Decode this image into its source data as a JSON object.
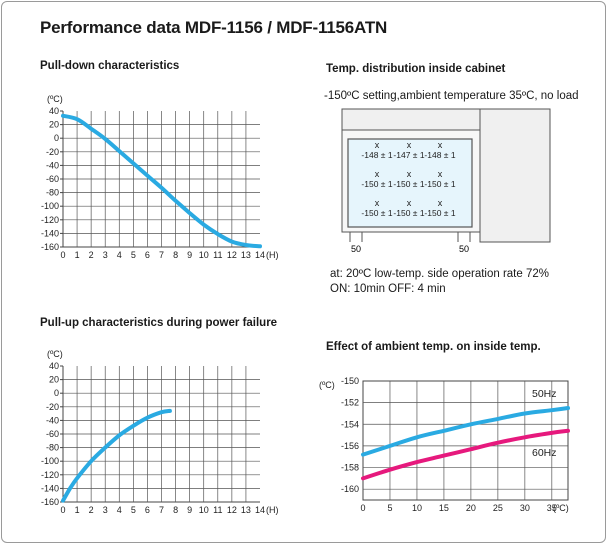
{
  "page": {
    "title": "Performance data MDF-1156 / MDF-1156ATN"
  },
  "pulldown": {
    "heading": "Pull-down characteristics"
  },
  "pullup": {
    "heading": "Pull-up characteristics during power failure"
  },
  "distribution": {
    "heading": "Temp. distribution inside cabinet",
    "setting": "-150ºC setting,ambient temperature 35ºC, no load",
    "readings": [
      [
        "-148 ± 1",
        "-147 ± 1",
        "-148 ± 1"
      ],
      [
        "-150 ± 1",
        "-150 ± 1",
        "-150 ± 1"
      ],
      [
        "-150 ± 1",
        "-150 ± 1",
        "-150 ± 1"
      ]
    ],
    "marker": "x",
    "leg_label_left": "50",
    "leg_label_right": "50",
    "operation_line1": "at: 20ºC low-temp. side operation rate 72%",
    "operation_line2": "ON: 10min  OFF: 4 min"
  },
  "ambient": {
    "heading": "Effect of ambient temp. on inside temp."
  },
  "chart_data": [
    {
      "type": "line",
      "title": "Pull-down characteristics",
      "xlabel": "(H)",
      "ylabel": "(ºC)",
      "xlim": [
        0,
        14
      ],
      "ylim": [
        -160,
        40
      ],
      "xticks": [
        0,
        1,
        2,
        3,
        4,
        5,
        6,
        7,
        8,
        9,
        10,
        11,
        12,
        13,
        14
      ],
      "yticks": [
        40,
        20,
        0,
        -20,
        -40,
        -60,
        -80,
        -100,
        -120,
        -140,
        -160
      ],
      "x_tick_labels": [
        "0",
        "1",
        "2",
        "3",
        "4",
        "5",
        "6",
        "7",
        "8",
        "9",
        "10",
        "11",
        "12",
        "13",
        "14"
      ],
      "y_tick_labels": [
        "40",
        "20",
        "0",
        "-20",
        "-40",
        "-60",
        "-80",
        "-100",
        "-120",
        "-140",
        "-160"
      ],
      "grid": true,
      "color": "#2aaae2",
      "x": [
        0,
        1,
        2,
        3,
        4,
        5,
        6,
        7,
        8,
        9,
        10,
        11,
        12,
        13,
        14
      ],
      "y": [
        33,
        28,
        14,
        -1,
        -19,
        -37,
        -55,
        -73,
        -92,
        -110,
        -127,
        -141,
        -152,
        -157,
        -159
      ]
    },
    {
      "type": "line",
      "title": "Pull-up characteristics during power failure",
      "xlabel": "(H)",
      "ylabel": "(ºC)",
      "xlim": [
        0,
        14
      ],
      "ylim": [
        -160,
        40
      ],
      "xticks": [
        0,
        1,
        2,
        3,
        4,
        5,
        6,
        7,
        8,
        9,
        10,
        11,
        12,
        13,
        14
      ],
      "yticks": [
        40,
        20,
        0,
        -20,
        -40,
        -60,
        -80,
        -100,
        -120,
        -140,
        -160
      ],
      "x_tick_labels": [
        "0",
        "1",
        "2",
        "3",
        "4",
        "5",
        "6",
        "7",
        "8",
        "9",
        "10",
        "11",
        "12",
        "13",
        "14"
      ],
      "y_tick_labels": [
        "40",
        "20",
        "0",
        "-20",
        "-40",
        "-60",
        "-80",
        "-100",
        "-120",
        "-140",
        "-160"
      ],
      "grid": true,
      "color": "#2aaae2",
      "x": [
        0,
        0.5,
        1,
        2,
        3,
        4,
        5,
        6,
        7,
        7.6
      ],
      "y": [
        -158,
        -140,
        -125,
        -100,
        -80,
        -62,
        -48,
        -36,
        -28,
        -26
      ]
    },
    {
      "type": "line",
      "title": "Effect of ambient temp. on inside temp.",
      "xlabel": "(ºC)",
      "ylabel": "(ºC)",
      "xlim": [
        0,
        38
      ],
      "ylim": [
        -161,
        -150
      ],
      "xticks": [
        0,
        5,
        10,
        15,
        20,
        25,
        30,
        35
      ],
      "yticks": [
        -150,
        -152,
        -154,
        -156,
        -158,
        -160
      ],
      "x_tick_labels": [
        "0",
        "5",
        "10",
        "15",
        "20",
        "25",
        "30",
        "35"
      ],
      "y_tick_labels": [
        "-150",
        "-152",
        "-154",
        "-156",
        "-158",
        "-160"
      ],
      "grid": true,
      "series": [
        {
          "name": "50Hz",
          "color": "#2aaae2",
          "x": [
            0,
            5,
            10,
            15,
            20,
            25,
            30,
            35,
            38
          ],
          "y": [
            -156.8,
            -156,
            -155.2,
            -154.6,
            -154,
            -153.5,
            -153,
            -152.7,
            -152.5
          ]
        },
        {
          "name": "60Hz",
          "color": "#e6197d",
          "x": [
            0,
            5,
            10,
            15,
            20,
            25,
            30,
            35,
            38
          ],
          "y": [
            -159,
            -158.2,
            -157.5,
            -156.9,
            -156.3,
            -155.7,
            -155.2,
            -154.8,
            -154.6
          ]
        }
      ]
    }
  ]
}
